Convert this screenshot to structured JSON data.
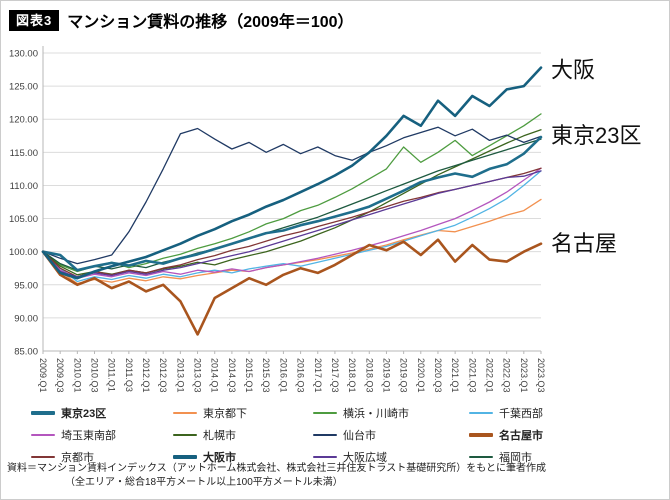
{
  "header": {
    "badge": "図表3",
    "title": "マンション賃料の推移（2009年＝100）"
  },
  "footer": {
    "line1": "資料＝マンション賃料インデックス（アットホーム株式会社、株式会社三井住友トラスト基礎研究所）をもとに筆者作成",
    "line2": "（全エリア・総合18平方メートル以上100平方メートル未満）"
  },
  "chart_data": {
    "type": "line",
    "title": "マンション賃料の推移（2009年＝100）",
    "ylim": [
      85,
      130
    ],
    "ytick_step": 5,
    "grid": true,
    "legend_position": "bottom",
    "x": [
      "2009.Q1",
      "2009.Q3",
      "2010.Q1",
      "2010.Q3",
      "2011.Q1",
      "2011.Q3",
      "2012.Q1",
      "2012.Q3",
      "2013.Q1",
      "2013.Q3",
      "2014.Q1",
      "2014.Q3",
      "2015.Q1",
      "2015.Q3",
      "2016.Q1",
      "2016.Q3",
      "2017.Q1",
      "2017.Q3",
      "2018.Q1",
      "2018.Q3",
      "2019.Q1",
      "2019.Q3",
      "2020.Q1",
      "2020.Q3",
      "2021.Q1",
      "2021.Q3",
      "2022.Q1",
      "2022.Q3",
      "2023.Q1",
      "2023.Q3"
    ],
    "series": [
      {
        "name": "東京23区",
        "color": "#1F6E8C",
        "width": 2.6,
        "values": [
          100,
          99.5,
          97.2,
          97.8,
          98.3,
          97.9,
          98.6,
          98.2,
          99.0,
          99.6,
          100.4,
          101.2,
          102.0,
          102.8,
          103.2,
          104.0,
          104.6,
          105.3,
          106.0,
          106.8,
          108.0,
          109.2,
          110.5,
          111.2,
          111.8,
          111.3,
          112.5,
          113.2,
          114.8,
          117.3
        ]
      },
      {
        "name": "東京都下",
        "color": "#F29150",
        "width": 1.3,
        "values": [
          100,
          97.0,
          95.2,
          95.8,
          95.4,
          96.0,
          95.6,
          96.2,
          95.9,
          96.4,
          96.8,
          97.2,
          97.0,
          97.6,
          98.0,
          98.4,
          98.8,
          99.3,
          99.8,
          100.4,
          101.0,
          101.8,
          102.5,
          103.2,
          103.0,
          103.8,
          104.6,
          105.5,
          106.2,
          107.9
        ]
      },
      {
        "name": "横浜・川崎市",
        "color": "#4E9C40",
        "width": 1.3,
        "values": [
          100,
          98.0,
          97.0,
          97.8,
          98.4,
          97.6,
          98.2,
          99.0,
          99.6,
          100.5,
          101.2,
          102.0,
          103.0,
          104.2,
          105.0,
          106.2,
          107.0,
          108.2,
          109.5,
          111.0,
          112.5,
          115.8,
          113.5,
          115.0,
          116.8,
          114.5,
          116.0,
          117.5,
          119.0,
          120.8
        ]
      },
      {
        "name": "千葉西部",
        "color": "#52B4E4",
        "width": 1.3,
        "values": [
          100,
          97.5,
          95.5,
          96.2,
          95.8,
          96.4,
          96.0,
          96.6,
          96.2,
          96.8,
          97.2,
          96.8,
          97.4,
          97.8,
          98.2,
          97.8,
          98.4,
          99.0,
          99.6,
          100.2,
          100.8,
          101.6,
          102.4,
          103.2,
          104.0,
          105.2,
          106.5,
          108.0,
          110.0,
          112.2
        ]
      },
      {
        "name": "埼玉東南部",
        "color": "#B456BE",
        "width": 1.3,
        "values": [
          100,
          97.2,
          96.0,
          96.6,
          96.2,
          96.8,
          96.4,
          97.0,
          96.6,
          97.2,
          96.9,
          97.4,
          97.0,
          97.6,
          98.0,
          98.5,
          99.0,
          99.6,
          100.2,
          100.9,
          101.6,
          102.4,
          103.2,
          104.1,
          105.0,
          106.2,
          107.5,
          109.0,
          110.8,
          112.6
        ]
      },
      {
        "name": "札幌市",
        "color": "#3C641E",
        "width": 1.3,
        "values": [
          100,
          97.8,
          96.5,
          97.0,
          96.6,
          97.2,
          96.8,
          97.4,
          97.8,
          98.4,
          98.0,
          98.8,
          99.4,
          100.0,
          100.8,
          101.6,
          102.6,
          103.6,
          104.8,
          106.0,
          107.4,
          108.8,
          110.2,
          111.6,
          112.8,
          114.0,
          115.2,
          116.4,
          117.5,
          118.4
        ]
      },
      {
        "name": "仙台市",
        "color": "#203A64",
        "width": 1.3,
        "values": [
          100,
          99.0,
          98.2,
          98.8,
          99.5,
          103.0,
          107.5,
          112.5,
          117.8,
          118.6,
          117.0,
          115.5,
          116.5,
          115.0,
          116.2,
          114.8,
          115.8,
          114.5,
          113.8,
          115.0,
          116.0,
          117.2,
          118.0,
          118.8,
          117.5,
          118.5,
          116.8,
          117.6,
          116.5,
          117.4
        ]
      },
      {
        "name": "名古屋市",
        "color": "#A9551E",
        "width": 2.6,
        "values": [
          100,
          96.5,
          95.0,
          96.0,
          94.5,
          95.5,
          94.0,
          95.0,
          92.5,
          87.5,
          93.0,
          94.5,
          96.0,
          95.0,
          96.5,
          97.5,
          96.8,
          98.0,
          99.5,
          101.0,
          100.2,
          101.5,
          99.5,
          101.8,
          98.5,
          101.0,
          98.8,
          98.5,
          100.0,
          101.2
        ]
      },
      {
        "name": "京都市",
        "color": "#823636",
        "width": 1.3,
        "values": [
          100,
          97.5,
          96.2,
          97.0,
          96.5,
          97.2,
          96.8,
          97.5,
          98.0,
          98.8,
          99.4,
          100.2,
          100.8,
          101.6,
          102.4,
          103.0,
          103.8,
          104.5,
          105.2,
          106.0,
          106.8,
          107.6,
          108.2,
          108.9,
          109.4,
          110.0,
          110.6,
          111.2,
          111.8,
          112.6
        ]
      },
      {
        "name": "大阪市",
        "color": "#16607F",
        "width": 2.6,
        "values": [
          100,
          96.8,
          96.0,
          97.0,
          97.8,
          98.5,
          99.2,
          100.2,
          101.2,
          102.4,
          103.4,
          104.6,
          105.6,
          106.8,
          107.8,
          109.0,
          110.2,
          111.5,
          113.0,
          115.0,
          117.5,
          120.5,
          119.0,
          122.8,
          120.5,
          123.5,
          122.0,
          124.5,
          125.0,
          127.8
        ]
      },
      {
        "name": "大阪広域",
        "color": "#5B3A96",
        "width": 1.3,
        "values": [
          100,
          97.0,
          96.2,
          96.8,
          96.4,
          97.0,
          96.6,
          97.2,
          97.6,
          98.2,
          98.8,
          99.4,
          100.0,
          100.8,
          101.6,
          102.4,
          103.2,
          104.0,
          104.8,
          105.6,
          106.4,
          107.2,
          108.0,
          108.8,
          109.4,
          110.0,
          110.6,
          111.2,
          111.4,
          112.2
        ]
      },
      {
        "name": "福岡市",
        "color": "#1E5A40",
        "width": 1.3,
        "values": [
          100,
          98.2,
          97.2,
          97.8,
          97.4,
          98.0,
          97.6,
          98.4,
          99.0,
          99.8,
          100.4,
          101.2,
          102.0,
          102.8,
          103.6,
          104.4,
          105.2,
          106.2,
          107.2,
          108.2,
          109.2,
          110.2,
          111.2,
          112.2,
          113.0,
          113.8,
          114.6,
          115.4,
          116.2,
          117.0
        ]
      }
    ],
    "annotations": [
      {
        "text": "大阪",
        "value": 127.5
      },
      {
        "text": "東京23区",
        "value": 117.6
      },
      {
        "text": "名古屋",
        "value": 101.3
      }
    ]
  }
}
